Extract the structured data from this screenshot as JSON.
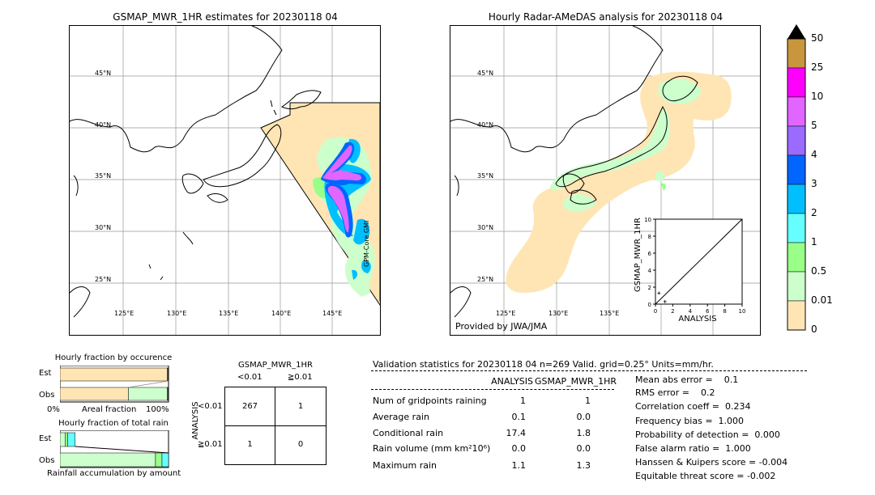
{
  "left_map": {
    "title": "GSMAP_MWR_1HR estimates for 20230118 04",
    "lat_labels": [
      "45°N",
      "40°N",
      "35°N",
      "30°N",
      "25°N"
    ],
    "lon_labels": [
      "125°E",
      "130°E",
      "135°E",
      "140°E",
      "145°E"
    ],
    "side_label": "GPM-Core GMI"
  },
  "right_map": {
    "title": "Hourly Radar-AMeDAS analysis for 20230118 04",
    "lat_labels": [
      "45°N",
      "40°N",
      "35°N",
      "30°N",
      "25°N"
    ],
    "lon_labels": [
      "125°E",
      "130°E",
      "135°E"
    ],
    "credit": "Provided by JWA/JMA"
  },
  "colorbar": {
    "labels": [
      "50",
      "25",
      "10",
      "5",
      "4",
      "3",
      "2",
      "1",
      "0.5",
      "0.01",
      "0"
    ],
    "colors": [
      "#c8963c",
      "#ff00ff",
      "#e066ff",
      "#9b6bff",
      "#0066ff",
      "#00bfff",
      "#66ffff",
      "#99ff88",
      "#ccffcc",
      "#ffe5b4"
    ],
    "extend_color": "#000000"
  },
  "chart_data": [
    {
      "type": "scatter",
      "xlabel": "ANALYSIS",
      "ylabel": "GSMAP_MWR_1HR",
      "xlim": [
        0,
        10
      ],
      "ylim": [
        0,
        10
      ],
      "x_ticks": [
        "0",
        "2",
        "4",
        "6",
        "8",
        "10"
      ],
      "y_ticks": [
        "0",
        "2",
        "4",
        "6",
        "8",
        "10"
      ],
      "points": [
        {
          "x": 0.0,
          "y": 0.0
        },
        {
          "x": 1.1,
          "y": 0.3
        },
        {
          "x": 0.4,
          "y": 1.3
        }
      ]
    },
    {
      "type": "bar",
      "title": "Hourly fraction by occurence",
      "categories": [
        "Est",
        "Obs"
      ],
      "xlabel": "Areal fraction",
      "x_ticks": [
        "0%",
        "100%"
      ],
      "series": [
        {
          "values": [
            0.99,
            0.63
          ],
          "color": "#ffe5b4"
        },
        {
          "values": [
            0.0,
            0.36
          ],
          "color": "#ccffcc"
        },
        {
          "values": [
            0.01,
            0.01
          ],
          "color": "#333333"
        }
      ]
    },
    {
      "type": "bar",
      "title": "Hourly fraction of total rain",
      "categories": [
        "Est",
        "Obs"
      ],
      "xlabel": "Rainfall accumulation by amount",
      "series": [
        {
          "values": [
            0.0,
            0.0
          ],
          "color": "#ffe5b4"
        },
        {
          "values": [
            0.05,
            0.88
          ],
          "color": "#ccffcc"
        },
        {
          "values": [
            0.02,
            0.06
          ],
          "color": "#99ff88"
        },
        {
          "values": [
            0.07,
            0.06
          ],
          "color": "#66ffff"
        }
      ]
    }
  ],
  "contingency": {
    "title": "GSMAP_MWR_1HR",
    "col_labels": [
      "<0.01",
      "≧0.01"
    ],
    "row_axis": "ANALYSIS",
    "row_labels": [
      "<0.01",
      "≧0.01"
    ],
    "cells": [
      [
        "267",
        "1"
      ],
      [
        "1",
        "0"
      ]
    ]
  },
  "validation": {
    "header": "Validation statistics for 20230118 04  n=269 Valid. grid=0.25° Units=mm/hr.",
    "col_analysis": "ANALYSIS",
    "col_gsmap": "GSMAP_MWR_1HR",
    "rows": [
      {
        "label": "Num of gridpoints raining",
        "analysis": "1",
        "gsmap": "1"
      },
      {
        "label": "Average rain",
        "analysis": "0.1",
        "gsmap": "0.0"
      },
      {
        "label": "Conditional rain",
        "analysis": "17.4",
        "gsmap": "1.8"
      },
      {
        "label": "Rain volume (mm km²10⁶)",
        "analysis": "0.0",
        "gsmap": "0.0"
      },
      {
        "label": "Maximum rain",
        "analysis": "1.1",
        "gsmap": "1.3"
      }
    ],
    "scores": [
      "Mean abs error =    0.1",
      "RMS error =    0.2",
      "Correlation coeff =  0.234",
      "Frequency bias =  1.000",
      "Probability of detection =  0.000",
      "False alarm ratio =  1.000",
      "Hanssen & Kuipers score = -0.004",
      "Equitable threat score = -0.002"
    ]
  }
}
